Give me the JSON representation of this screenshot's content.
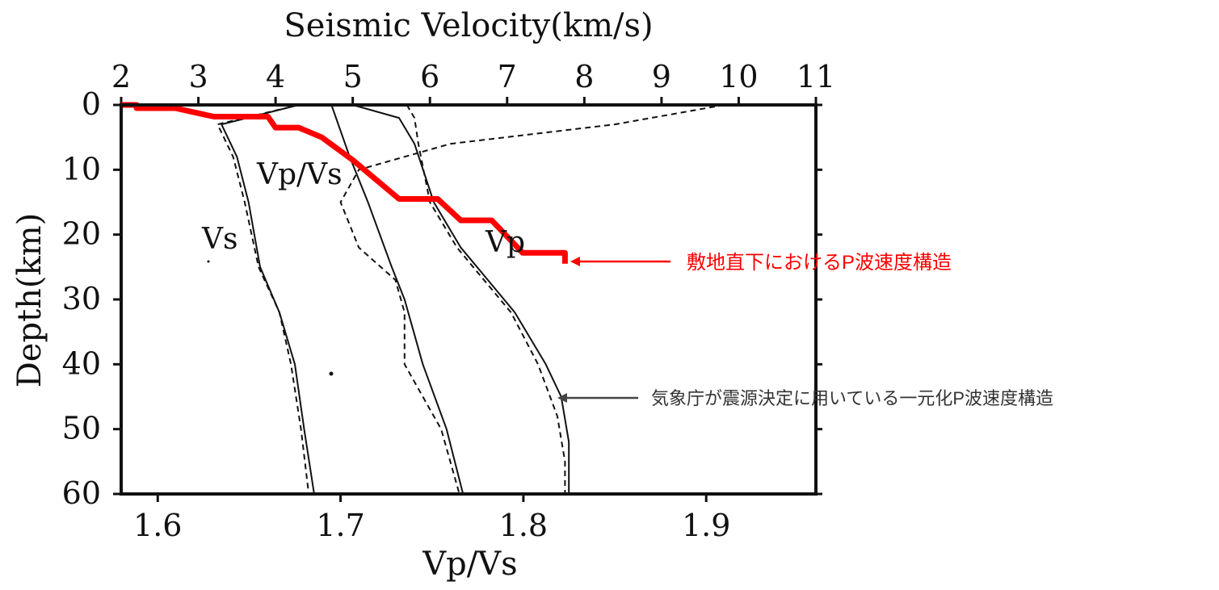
{
  "chart_data": {
    "type": "line",
    "title": "",
    "top_axis": {
      "label": "Seismic Velocity(km/s)",
      "ticks": [
        "2",
        "3",
        "4",
        "5",
        "6",
        "7",
        "8",
        "9",
        "10",
        "11"
      ],
      "range": [
        2,
        11
      ]
    },
    "bottom_axis": {
      "label": "Vp/Vs",
      "ticks": [
        "1.6",
        "1.7",
        "1.8",
        "1.9"
      ],
      "range": [
        1.58,
        1.96
      ]
    },
    "y_axis": {
      "label": "Depth(km)",
      "ticks": [
        "0",
        "10",
        "20",
        "30",
        "40",
        "50",
        "60"
      ],
      "range": [
        0,
        60
      ],
      "inverted": true
    },
    "curve_labels": {
      "vs": "Vs",
      "vpvs": "Vp/Vs",
      "vp": "Vp"
    },
    "colors": {
      "red_structure": "#ff0000",
      "black_curves": "#111111",
      "arrow_dark": "#444444"
    },
    "series": [
      {
        "name": "Vs",
        "style": "solid",
        "axis": "velocity",
        "points": [
          [
            4.3,
            0
          ],
          [
            3.3,
            3
          ],
          [
            3.5,
            8
          ],
          [
            3.65,
            15
          ],
          [
            3.8,
            25
          ],
          [
            4.05,
            32
          ],
          [
            4.25,
            40
          ],
          [
            4.37,
            50
          ],
          [
            4.5,
            60
          ]
        ]
      },
      {
        "name": "Vs",
        "style": "dashed",
        "axis": "velocity",
        "points": [
          [
            4.3,
            0
          ],
          [
            3.25,
            3
          ],
          [
            3.45,
            8
          ],
          [
            3.6,
            15
          ],
          [
            3.78,
            25
          ],
          [
            4.05,
            32
          ],
          [
            4.2,
            40
          ],
          [
            4.33,
            50
          ],
          [
            4.43,
            60
          ]
        ]
      },
      {
        "name": "Vp",
        "style": "solid",
        "axis": "velocity",
        "points": [
          [
            5.0,
            0
          ],
          [
            5.6,
            2
          ],
          [
            5.8,
            6
          ],
          [
            6.05,
            15
          ],
          [
            6.4,
            22
          ],
          [
            6.75,
            27
          ],
          [
            7.1,
            32
          ],
          [
            7.5,
            40
          ],
          [
            7.7,
            45
          ],
          [
            7.8,
            52
          ],
          [
            7.8,
            60
          ]
        ]
      },
      {
        "name": "Vp",
        "style": "dashed",
        "axis": "velocity",
        "points": [
          [
            5.7,
            0
          ],
          [
            5.8,
            2
          ],
          [
            5.85,
            6
          ],
          [
            6.0,
            15
          ],
          [
            6.35,
            22
          ],
          [
            6.7,
            27
          ],
          [
            7.05,
            32
          ],
          [
            7.4,
            40
          ],
          [
            7.65,
            48
          ],
          [
            7.75,
            55
          ],
          [
            7.75,
            60
          ]
        ]
      },
      {
        "name": "Vp/Vs",
        "style": "solid",
        "axis": "vpvs",
        "points": [
          [
            1.695,
            0
          ],
          [
            1.705,
            8
          ],
          [
            1.715,
            15
          ],
          [
            1.728,
            25
          ],
          [
            1.735,
            30
          ],
          [
            1.745,
            40
          ],
          [
            1.758,
            50
          ],
          [
            1.767,
            60
          ]
        ]
      },
      {
        "name": "Vp/Vs",
        "style": "dashed",
        "axis": "vpvs",
        "points": [
          [
            1.91,
            0
          ],
          [
            1.85,
            3
          ],
          [
            1.76,
            6
          ],
          [
            1.71,
            10
          ],
          [
            1.7,
            15
          ],
          [
            1.71,
            22
          ],
          [
            1.73,
            27
          ],
          [
            1.735,
            32
          ],
          [
            1.735,
            40
          ],
          [
            1.745,
            45
          ],
          [
            1.755,
            50
          ],
          [
            1.765,
            60
          ]
        ]
      },
      {
        "name": "敷地直下におけるP波速度構造",
        "style": "thick",
        "axis": "velocity",
        "points": [
          [
            2.0,
            0
          ],
          [
            2.2,
            0
          ],
          [
            2.2,
            0.5
          ],
          [
            2.7,
            0.5
          ],
          [
            3.2,
            1.8
          ],
          [
            3.9,
            1.8
          ],
          [
            4.0,
            3.5
          ],
          [
            4.3,
            3.5
          ],
          [
            4.6,
            5
          ],
          [
            5.0,
            8.5
          ],
          [
            5.6,
            14.5
          ],
          [
            6.1,
            14.5
          ],
          [
            6.4,
            17.8
          ],
          [
            6.8,
            17.8
          ],
          [
            7.2,
            22.8
          ],
          [
            7.75,
            22.8
          ],
          [
            7.75,
            24.5
          ]
        ]
      }
    ],
    "annotations": {
      "red": "敷地直下におけるP波速度構造",
      "dark": "気象庁が震源決定に用いている一元化P波速度構造"
    }
  }
}
